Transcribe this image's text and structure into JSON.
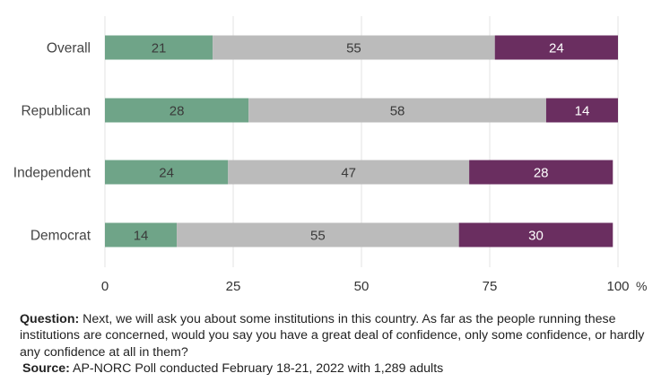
{
  "chart_data": {
    "type": "bar",
    "orientation": "horizontal",
    "stacked": true,
    "categories": [
      "Overall",
      "Republican",
      "Independent",
      "Democrat"
    ],
    "series": [
      {
        "values": [
          21,
          28,
          24,
          14
        ],
        "color": "#6fa488"
      },
      {
        "values": [
          55,
          58,
          47,
          55
        ],
        "color": "#bbbbbb"
      },
      {
        "values": [
          24,
          14,
          28,
          30
        ],
        "color": "#6a2e60"
      }
    ],
    "xlim": [
      0,
      100
    ],
    "xticks": [
      0,
      25,
      50,
      75,
      100
    ],
    "xtick_labels": [
      "0",
      "25",
      "50",
      "75",
      "100"
    ],
    "x_unit": "%",
    "grid": true
  },
  "footer": {
    "question_label": "Question:",
    "question_text": " Next, we will ask you about some institutions in this country. As far as the people running these institutions are concerned, would you say you have a great deal of confidence, only some confidence, or hardly any confidence at all in them?",
    "source_label": "Source:",
    "source_text": " AP-NORC Poll conducted February 18-21, 2022 with 1,289 adults"
  }
}
